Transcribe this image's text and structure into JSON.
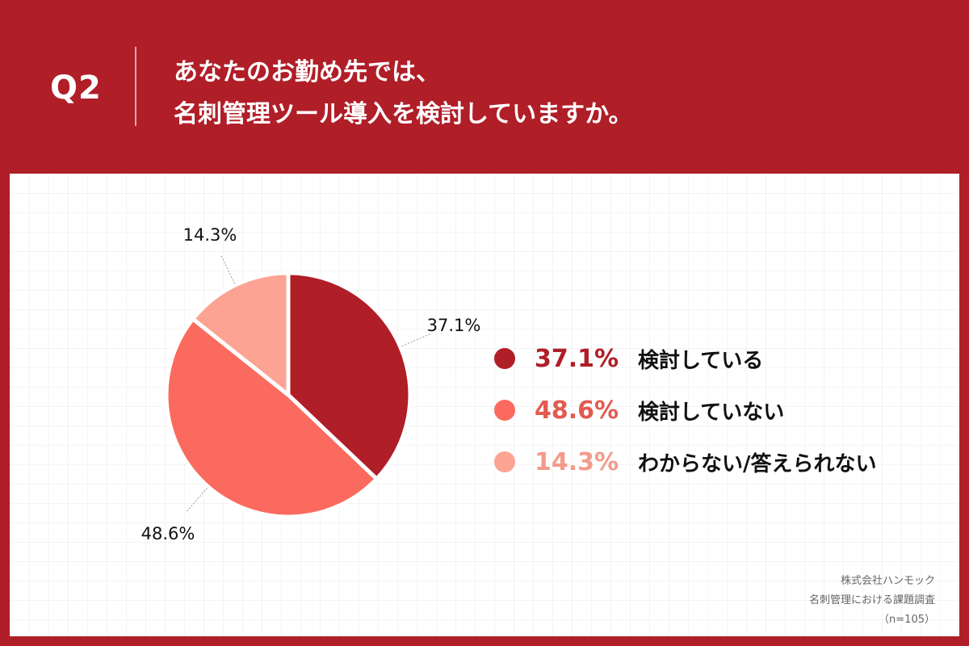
{
  "header": {
    "q_label": "Q2",
    "question_line1": "あなたのお勤め先では、",
    "question_line2": "名刺管理ツール導入を検討していますか。"
  },
  "chart_data": {
    "type": "pie",
    "title": "",
    "slices": [
      {
        "label": "検討している",
        "value": 37.1,
        "value_label": "37.1%",
        "color": "#b01e28"
      },
      {
        "label": "検討していない",
        "value": 48.6,
        "value_label": "48.6%",
        "color": "#fb6a5e"
      },
      {
        "label": "わからない/答えられない",
        "value": 14.3,
        "value_label": "14.3%",
        "color": "#fca394"
      }
    ],
    "start": "12 o'clock",
    "direction": "clockwise"
  },
  "legend": {
    "items": [
      {
        "pct": "37.1%",
        "label": "検討している",
        "color": "#b01e28",
        "text_color": "#b01e28"
      },
      {
        "pct": "48.6%",
        "label": "検討していない",
        "color": "#fb6a5e",
        "text_color": "#e25b50"
      },
      {
        "pct": "14.3%",
        "label": "わからない/答えられない",
        "color": "#fca394",
        "text_color": "#f59a8b"
      }
    ]
  },
  "source": {
    "line1": "株式会社ハンモック",
    "line2": "名刺管理における課題調査",
    "line3": "（n=105）"
  },
  "colors": {
    "header_bg": "#b01e28",
    "panel_bg": "#ffffff"
  }
}
